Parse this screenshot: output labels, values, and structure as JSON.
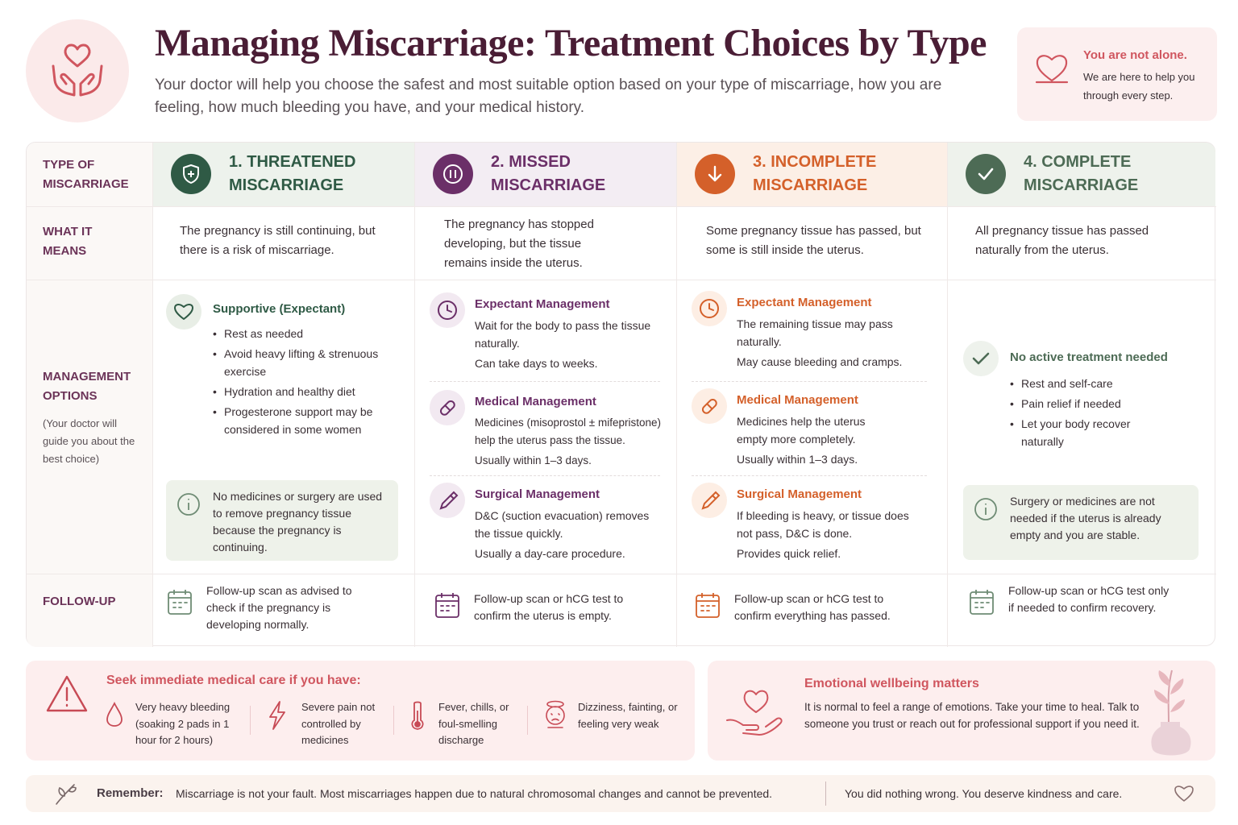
{
  "header": {
    "title": "Managing Miscarriage: Treatment Choices by Type",
    "subtitle": "Your doctor will help you choose the safest and most suitable option based on your type of miscarriage, how you are feeling, how much bleeding you have, and your medical history."
  },
  "support": {
    "title": "You are not alone.",
    "text": "We are here to help you through every step."
  },
  "rows": {
    "type": "TYPE OF MISCARRIAGE",
    "meaning": "WHAT IT MEANS",
    "management": "MANAGEMENT OPTIONS",
    "management_note": "(Your doctor will guide you about the best choice)",
    "followup": "FOLLOW-UP"
  },
  "columns": [
    {
      "title": "1. THREATENED MISCARRIAGE",
      "color": "#2f5a45",
      "meaning": "The pregnancy is still continuing, but there is a risk of miscarriage.",
      "option_title": "Supportive (Expectant)",
      "bullets": [
        "Rest as needed",
        "Avoid heavy lifting & strenuous exercise",
        "Hydration and healthy diet",
        "Progesterone support may be considered in some women"
      ],
      "info": "No medicines or surgery are used to remove pregnancy tissue because the pregnancy is continuing.",
      "followup": "Follow-up scan as advised to check if the pregnancy is developing normally."
    },
    {
      "title": "2. MISSED MISCARRIAGE",
      "color": "#6b2f68",
      "meaning": "The pregnancy has stopped developing, but the tissue remains inside the uterus.",
      "options": [
        {
          "title": "Expectant Management",
          "lines": [
            "Wait for the body to pass the tissue naturally.",
            "Can take days to weeks."
          ]
        },
        {
          "title": "Medical Management",
          "lines": [
            "Medicines (misoprostol ± mifepristone) help the uterus pass the tissue.",
            "Usually within 1–3 days."
          ]
        },
        {
          "title": "Surgical Management",
          "lines": [
            "D&C (suction evacuation) removes the tissue quickly.",
            "Usually a day-care procedure."
          ]
        }
      ],
      "followup": "Follow-up scan or hCG test to confirm the uterus is empty."
    },
    {
      "title": "3. INCOMPLETE MISCARRIAGE",
      "color": "#d4602a",
      "meaning": "Some pregnancy tissue has passed, but some is still inside the uterus.",
      "options": [
        {
          "title": "Expectant Management",
          "lines": [
            "The remaining tissue may pass naturally.",
            "May cause bleeding and cramps."
          ]
        },
        {
          "title": "Medical Management",
          "lines": [
            "Medicines help the uterus empty more completely.",
            "Usually within 1–3 days."
          ]
        },
        {
          "title": "Surgical Management",
          "lines": [
            "If bleeding is heavy, or tissue does not pass, D&C is done.",
            "Provides quick relief."
          ]
        }
      ],
      "followup": "Follow-up scan or hCG test to confirm everything has passed."
    },
    {
      "title": "4. COMPLETE MISCARRIAGE",
      "color": "#4d6b55",
      "meaning": "All pregnancy tissue has passed naturally from the uterus.",
      "option_title": "No active treatment needed",
      "bullets": [
        "Rest and self-care",
        "Pain relief if needed",
        "Let your body recover naturally"
      ],
      "info": "Surgery or medicines are not needed if the uterus is already empty and you are stable.",
      "followup": "Follow-up scan or hCG test only if needed to confirm recovery."
    }
  ],
  "warning": {
    "title": "Seek immediate medical care if you have:",
    "items": [
      "Very heavy bleeding (soaking 2 pads in 1 hour for 2 hours)",
      "Severe pain not controlled by medicines",
      "Fever, chills, or foul-smelling discharge",
      "Dizziness, fainting, or feeling very weak"
    ]
  },
  "emotional": {
    "title": "Emotional wellbeing matters",
    "text": "It is normal to feel a range of emotions. Take your time to heal. Talk to someone you trust or reach out for professional support if you need it."
  },
  "remember": {
    "label": "Remember:",
    "text": "Miscarriage is not your fault. Most miscarriages happen due to natural chromosomal changes and cannot be prevented.",
    "text2": "You did nothing wrong. You deserve kindness and care."
  }
}
